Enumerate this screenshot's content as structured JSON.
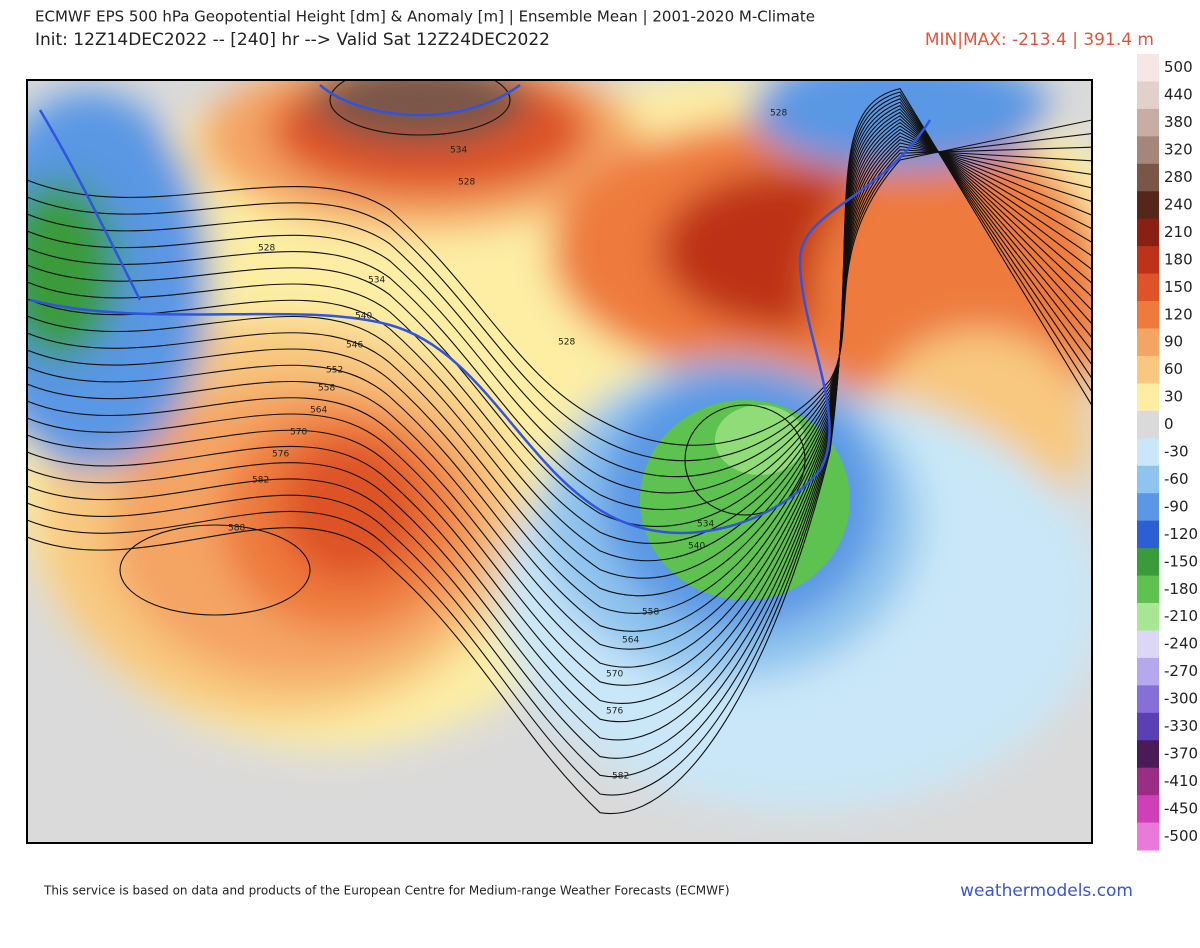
{
  "header": {
    "title": "ECMWF EPS 500 hPa Geopotential Height [dm] & Anomaly [m] | Ensemble Mean | 2001-2020 M-Climate",
    "subtitle": "Init: 12Z14DEC2022 -- [240] hr --> Valid Sat 12Z24DEC2022",
    "minmax": "MIN|MAX: -213.4 | 391.4 m"
  },
  "legend": {
    "items": [
      {
        "label": 500,
        "color": "#f7e6e6"
      },
      {
        "label": 440,
        "color": "#e2d0ca"
      },
      {
        "label": 380,
        "color": "#c7ada3"
      },
      {
        "label": 320,
        "color": "#a5867a"
      },
      {
        "label": 280,
        "color": "#7a5649"
      },
      {
        "label": 240,
        "color": "#57261b"
      },
      {
        "label": 210,
        "color": "#8a1f13"
      },
      {
        "label": 180,
        "color": "#bd3319"
      },
      {
        "label": 150,
        "color": "#de5328"
      },
      {
        "label": 120,
        "color": "#ee7a3e"
      },
      {
        "label": 90,
        "color": "#f4a463"
      },
      {
        "label": 60,
        "color": "#f8c880"
      },
      {
        "label": 30,
        "color": "#fdeea4"
      },
      {
        "label": 0,
        "color": "#dadada"
      },
      {
        "label": -30,
        "color": "#c9e7f8"
      },
      {
        "label": -60,
        "color": "#8fc4ee"
      },
      {
        "label": -90,
        "color": "#5a97e4"
      },
      {
        "label": -120,
        "color": "#2c5fd4"
      },
      {
        "label": -150,
        "color": "#3a9b3a"
      },
      {
        "label": -180,
        "color": "#5dc24f"
      },
      {
        "label": -210,
        "color": "#a7e692"
      },
      {
        "label": -240,
        "color": "#ddd7f6"
      },
      {
        "label": -270,
        "color": "#b6a8ec"
      },
      {
        "label": -300,
        "color": "#8670d8"
      },
      {
        "label": -330,
        "color": "#5a3fb5"
      },
      {
        "label": -370,
        "color": "#4b1a58"
      },
      {
        "label": -410,
        "color": "#9a2d86"
      },
      {
        "label": -450,
        "color": "#cf3fb7"
      },
      {
        "label": -500,
        "color": "#ea7ad9"
      }
    ]
  },
  "map": {
    "contour_labels": [
      528,
      534,
      528,
      528,
      534,
      540,
      546,
      552,
      558,
      564,
      570,
      576,
      582,
      588,
      528,
      534,
      540,
      558,
      564,
      570,
      576,
      582
    ]
  },
  "footer": {
    "credit": "This service is based on data and products of the European Centre for Medium-range Weather Forecasts (ECMWF)",
    "site": "weathermodels.com"
  }
}
